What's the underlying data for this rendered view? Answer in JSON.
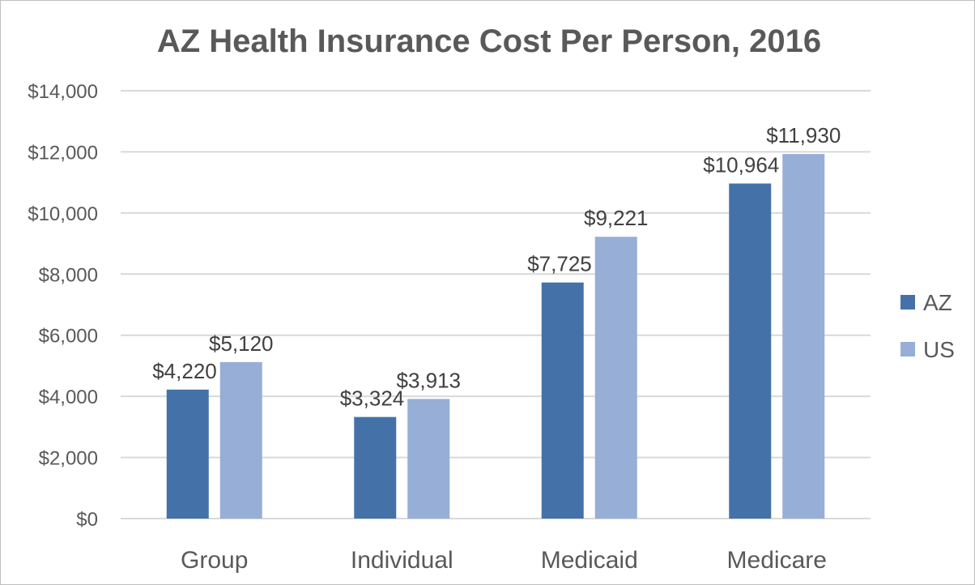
{
  "chart_data": {
    "type": "bar",
    "title": "AZ Health Insurance Cost Per Person, 2016",
    "xlabel": "",
    "ylabel": "",
    "categories": [
      "Group",
      "Individual",
      "Medicaid",
      "Medicare"
    ],
    "series": [
      {
        "name": "AZ",
        "values": [
          4220,
          3324,
          7725,
          10964
        ],
        "color": "#4472a8",
        "labels": [
          "$4,220",
          "$3,324",
          "$7,725",
          "$10,964"
        ]
      },
      {
        "name": "US",
        "values": [
          5120,
          3913,
          9221,
          11930
        ],
        "color": "#97aed6",
        "labels": [
          "$5,120",
          "$3,913",
          "$9,221",
          "$11,930"
        ]
      }
    ],
    "ylim": [
      0,
      14000
    ],
    "yticks": [
      0,
      2000,
      4000,
      6000,
      8000,
      10000,
      12000,
      14000
    ],
    "ytick_labels": [
      "$0",
      "$2,000",
      "$4,000",
      "$6,000",
      "$8,000",
      "$10,000",
      "$12,000",
      "$14,000"
    ],
    "grid": true,
    "legend_position": "right"
  }
}
